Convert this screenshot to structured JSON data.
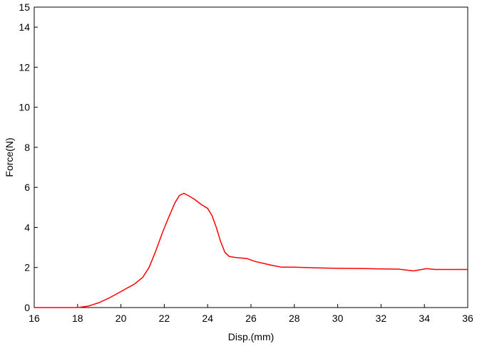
{
  "chart_data": {
    "type": "line",
    "title": "",
    "xlabel": "Disp.(mm)",
    "ylabel": "Force(N)",
    "xlim": [
      16,
      36
    ],
    "ylim": [
      0,
      15
    ],
    "xticks": [
      16,
      18,
      20,
      22,
      24,
      26,
      28,
      30,
      32,
      34,
      36
    ],
    "yticks": [
      0,
      2,
      4,
      6,
      8,
      10,
      12,
      14,
      15
    ],
    "grid": false,
    "line_color": "#ff0000",
    "series": [
      {
        "x": [
          16.0,
          17.0,
          18.0,
          18.5,
          19.0,
          19.5,
          20.0,
          20.3,
          20.6,
          21.0,
          21.3,
          21.6,
          21.9,
          22.2,
          22.5,
          22.7,
          22.9,
          23.1,
          23.4,
          23.7,
          24.0,
          24.2,
          24.4,
          24.6,
          24.8,
          25.0,
          25.3,
          25.8,
          26.2,
          26.6,
          27.0,
          27.4,
          28.0,
          29.0,
          30.0,
          31.0,
          32.0,
          32.8,
          33.5,
          34.1,
          34.5,
          35.0,
          36.0
        ],
        "y": [
          0.0,
          0.0,
          0.0,
          0.07,
          0.25,
          0.5,
          0.8,
          0.98,
          1.15,
          1.5,
          2.0,
          2.8,
          3.7,
          4.5,
          5.25,
          5.6,
          5.7,
          5.6,
          5.4,
          5.15,
          4.95,
          4.6,
          4.0,
          3.3,
          2.75,
          2.55,
          2.5,
          2.45,
          2.3,
          2.2,
          2.1,
          2.02,
          2.02,
          1.98,
          1.96,
          1.95,
          1.93,
          1.92,
          1.83,
          1.94,
          1.9,
          1.9,
          1.9
        ]
      }
    ]
  }
}
